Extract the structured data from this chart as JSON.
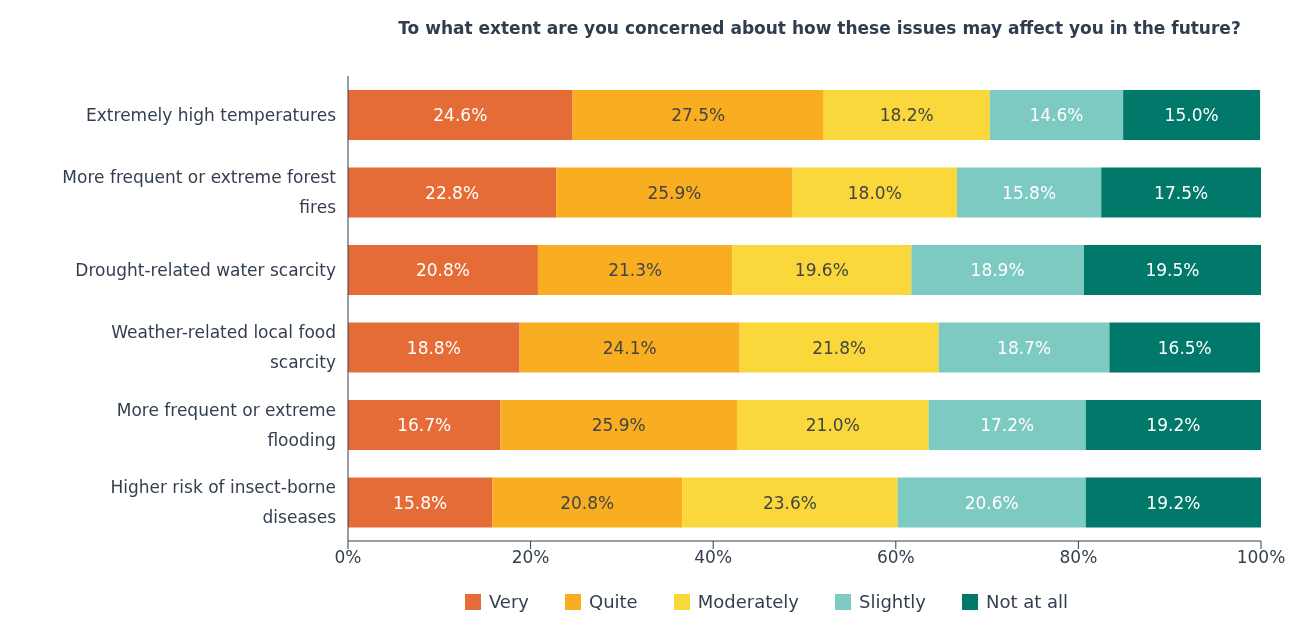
{
  "chart_data": {
    "type": "bar",
    "orientation": "horizontal",
    "stacked": true,
    "title": "To what extent are you concerned about how these issues may affect you in the future?",
    "categories": [
      "Extremely high temperatures",
      "More frequent or extreme forest fires",
      "Drought-related water scarcity",
      "Weather-related local food scarcity",
      "More frequent or extreme flooding",
      "Higher risk of insect-borne diseases"
    ],
    "series": [
      {
        "name": "Very",
        "color": "#e66c37",
        "values": [
          24.6,
          22.8,
          20.8,
          18.8,
          16.7,
          15.8
        ],
        "value_labels": [
          "24.6%",
          "22.8%",
          "20.8%",
          "18.8%",
          "16.7%",
          "15.8%"
        ]
      },
      {
        "name": "Quite",
        "color": "#f9ad21",
        "values": [
          27.5,
          25.9,
          21.3,
          24.1,
          25.9,
          20.8
        ],
        "value_labels": [
          "27.5%",
          "25.9%",
          "21.3%",
          "24.1%",
          "25.9%",
          "20.8%"
        ]
      },
      {
        "name": "Moderately",
        "color": "#fad83b",
        "values": [
          18.2,
          18.0,
          19.6,
          21.8,
          21.0,
          23.6
        ],
        "value_labels": [
          "18.2%",
          "18.0%",
          "19.6%",
          "21.8%",
          "21.0%",
          "23.6%"
        ]
      },
      {
        "name": "Slightly",
        "color": "#7ccac1",
        "values": [
          14.6,
          15.8,
          18.9,
          18.7,
          17.2,
          20.6
        ],
        "value_labels": [
          "14.6%",
          "15.8%",
          "18.9%",
          "18.7%",
          "17.2%",
          "20.6%"
        ]
      },
      {
        "name": "Not at all",
        "color": "#00796b",
        "values": [
          15.0,
          17.5,
          19.5,
          16.5,
          19.2,
          19.2
        ],
        "value_labels": [
          "15.0%",
          "17.5%",
          "19.5%",
          "16.5%",
          "19.2%",
          "19.2%"
        ]
      }
    ],
    "xlim": [
      0,
      100
    ],
    "xticks": [
      {
        "value": 0,
        "label": "0%"
      },
      {
        "value": 20,
        "label": "20%"
      },
      {
        "value": 40,
        "label": "40%"
      },
      {
        "value": 60,
        "label": "60%"
      },
      {
        "value": 80,
        "label": "80%"
      },
      {
        "value": 100,
        "label": "100%"
      }
    ],
    "grid": false,
    "legend": "bottom"
  }
}
